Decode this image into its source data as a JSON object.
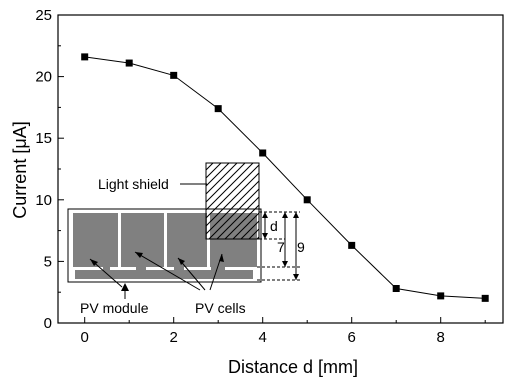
{
  "chart_data": {
    "type": "line",
    "xlabel": "Distance d [mm]",
    "ylabel": "Current [μA]",
    "xlim": [
      -0.6,
      9.4
    ],
    "ylim": [
      0,
      25
    ],
    "xticks": [
      0,
      2,
      4,
      6,
      8
    ],
    "yticks": [
      0,
      5,
      10,
      15,
      20,
      25
    ],
    "grid": false,
    "series": [
      {
        "x": [
          0,
          1,
          2,
          3,
          4,
          5,
          6,
          7,
          8,
          9
        ],
        "y": [
          21.6,
          21.1,
          20.1,
          17.4,
          13.8,
          10.0,
          6.3,
          2.8,
          2.2,
          2.0
        ],
        "marker": "square",
        "color": "#000000"
      }
    ]
  },
  "inset": {
    "light_shield_label": "Light shield",
    "pv_module_label": "PV module",
    "pv_cells_label": "PV cells",
    "dim_d_label": "d",
    "dim_7_label": "7",
    "dim_9_label": "9",
    "module_color": "#808080"
  }
}
